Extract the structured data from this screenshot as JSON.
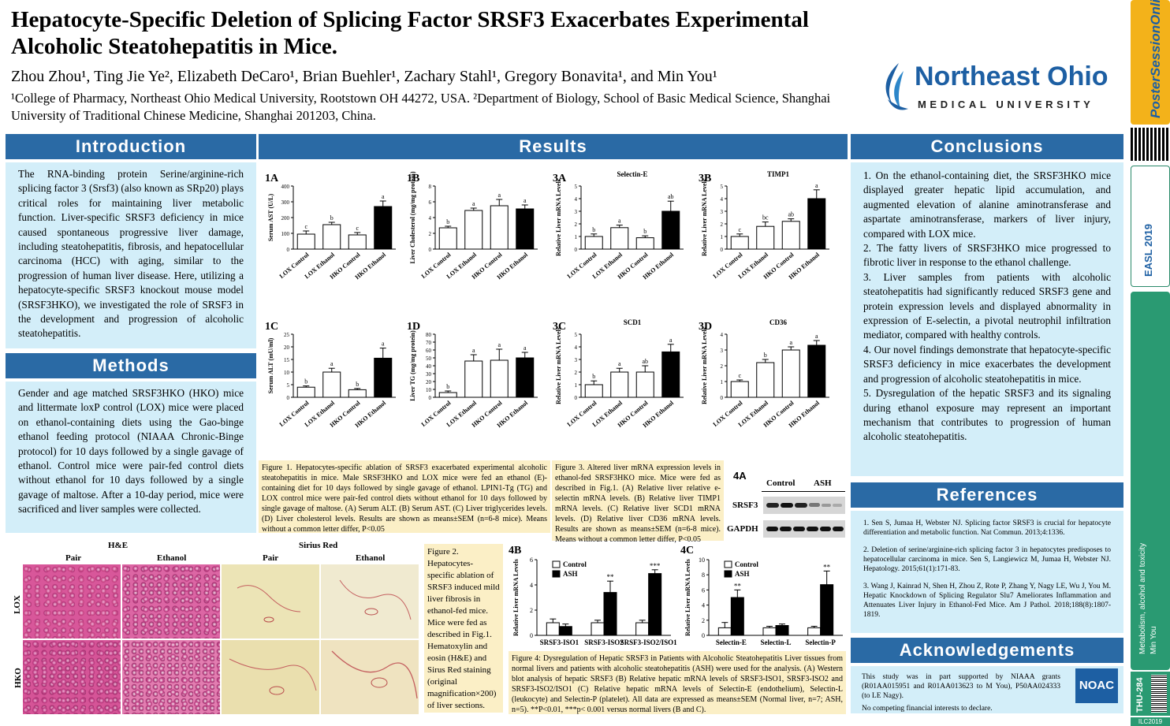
{
  "header": {
    "title": "Hepatocyte-Specific Deletion of Splicing Factor SRSF3 Exacerbates Experimental Alcoholic Steatohepatitis in Mice.",
    "authors": "Zhou Zhou¹, Ting Jie Ye², Elizabeth DeCaro¹, Brian Buehler¹, Zachary Stahl¹, Gregory Bonavita¹, and Min You¹",
    "affiliations": "¹College of Pharmacy, Northeast Ohio Medical University, Rootstown OH 44272, USA. ²Department of Biology, School of Basic Medical Science, Shanghai University of Traditional Chinese Medicine, Shanghai 201203, China.",
    "logo_name": "Northeast Ohio",
    "logo_sub": "MEDICAL UNIVERSITY"
  },
  "sections": {
    "introduction": "Introduction",
    "methods": "Methods",
    "results": "Results",
    "conclusions": "Conclusions",
    "references": "References",
    "acknowledgements": "Acknowledgements"
  },
  "introduction_text": "The RNA-binding protein Serine/arginine-rich splicing factor 3 (Srsf3) (also known as SRp20) plays critical roles for maintaining liver metabolic function. Liver-specific SRSF3 deficiency in mice caused spontaneous progressive liver damage, including steatohepatitis, fibrosis, and hepatocellular carcinoma (HCC) with aging, similar to the progression of human liver disease. Here, utilizing a hepatocyte-specific SRSF3 knockout mouse model (SRSF3HKO), we investigated the role of SRSF3 in the development and progression of alcoholic steatohepatitis.",
  "methods_text": "Gender and age matched SRSF3HKO (HKO) mice and littermate loxP control (LOX) mice were placed on ethanol-containing diets using the Gao-binge ethanol feeding protocol (NIAAA Chronic-Binge protocol) for 10 days followed by a single gavage of ethanol. Control mice were pair-fed control diets without ethanol for 10 days followed by a single gavage of maltose. After a 10-day period, mice were sacrificed and liver samples were collected.",
  "conclusions": [
    "1. On the ethanol-containing diet, the SRSF3HKO mice displayed greater hepatic lipid accumulation, and augmented elevation of alanine aminotransferase and aspartate aminotransferase, markers of liver injury, compared with LOX mice.",
    "2. The fatty livers of SRSF3HKO mice progressed to fibrotic liver in response to the ethanol challenge.",
    "3. Liver samples from patients with alcoholic steatohepatitis had significantly reduced SRSF3 gene and protein expression levels and displayed abnormality in expression of E-selectin, a pivotal neutrophil infiltration mediator, compared with healthy controls.",
    "4. Our novel findings demonstrate that hepatocyte-specific SRSF3 deficiency in mice exacerbates the development and progression of alcoholic steatohepatitis in mice.",
    "5. Dysregulation of the hepatic SRSF3 and its signaling during ethanol exposure may represent an important mechanism that contributes to progression of human alcoholic steatohepatitis."
  ],
  "references": [
    "1. Sen S, Jumaa H, Webster NJ. Splicing factor SRSF3 is crucial for hepatocyte differentiation and metabolic function. Nat Commun. 2013;4:1336.",
    "2. Deletion of serine/arginine-rich splicing factor 3 in hepatocytes predisposes to hepatocellular carcinoma in mice. Sen S, Langiewicz M, Jumaa H, Webster NJ. Hepatology. 2015;61(1):171-83.",
    "3. Wang J, Kainrad N, Shen H, Zhou Z, Rote P, Zhang Y, Nagy LE, Wu J, You M. Hepatic Knockdown of Splicing Regulator Slu7 Ameliorates Inflammation and Attenuates Liver Injury in Ethanol-Fed Mice. Am J Pathol. 2018;188(8):1807-1819."
  ],
  "acknowledgements": [
    "This study was in part supported by NIAAA grants (R01AA015951 and R01AA013623 to M You), P50AA024333 (to LE Nagy).",
    "No competing financial interests to declare."
  ],
  "noac": "NOAC",
  "captions": {
    "fig1": "Figure 1. Hepatocytes-specific ablation of SRSF3 exacerbated experimental alcoholic steatohepatitis in mice. Male SRSF3HKO and LOX mice were fed an ethanol (E)-containing diet for 10 days followed by single gavage of ethanol. LPIN1-Tg (TG) and LOX control mice were pair-fed control diets without ethanol for 10 days followed by single gavage of maltose. (A) Serum ALT. (B) Serum AST. (C) Liver triglycerides levels. (D) Liver cholesterol levels. Results are shown as means±SEM (n=6-8 mice). Means without a common letter differ, P<0.05",
    "fig3": "Figure 3. Altered liver mRNA expression levels in ethanol-fed SRSF3HKO mice. Mice were fed as described in Fig.1. (A) Relative liver relative e-selectin mRNA levels. (B) Relative liver TIMP1 mRNA levels. (C) Relative liver SCD1 mRNA levels. (D) Relative liver CD36 mRNA levels. Results are shown as means±SEM (n=6-8 mice). Means without a common letter differ, P<0.05",
    "fig2": "Figure 2. Hepatocytes-specific ablation of SRSF3 induced mild liver fibrosis in ethanol-fed mice. Mice were fed as described in Fig.1. Hematoxylin and eosin (H&E) and Sirus Red staining (original magnification×200) of liver sections.",
    "fig4": "Figure 4: Dysregulation of Hepatic SRSF3 in Patients with Alcoholic Steatohepatitis Liver tissues from normal livers and patients with alcoholic steatohepatitis (ASH) were used for the analysis. (A) Western blot analysis of hepatic SRSF3 (B) Relative hepatic mRNA levels of SRSF3-ISO1, SRSF3-ISO2 and SRSF3-ISO2/ISO1 (C) Relative hepatic mRNA levels of Selectin-E (endothelium), Selectin-L (leukocyte) and Selectin-P (platelet). All data are expressed as means±SEM (Normal liver, n=7; ASH, n=5). **P<0.01, ***p< 0.001 versus normal livers (B and C)."
  },
  "histology": {
    "he": "H&E",
    "sirius": "Sirius Red",
    "cols": [
      "Pair",
      "Ethanol",
      "Pair",
      "Ethanol"
    ],
    "rows": [
      "LOX",
      "HKO"
    ]
  },
  "western": {
    "label": "4A",
    "cols": [
      "Control",
      "ASH"
    ],
    "rows": [
      "SRSF3",
      "GAPDH"
    ]
  },
  "sidebar": {
    "brand": "PosterSessionOnline",
    "event": "EASL 2019",
    "topic": "Metabolism, alcohol and toxicity",
    "author": "Min You",
    "code": "THU-284",
    "footer": "ILC2019"
  },
  "chart_data": [
    {
      "id": "1A",
      "type": "bar",
      "ylabel": "Serum AST (U/L)",
      "categories": [
        "LOX Control",
        "LOX Ethanol",
        "HKO Control",
        "HKO Ethanol"
      ],
      "values": [
        95,
        155,
        90,
        270
      ],
      "errors": [
        20,
        15,
        15,
        35
      ],
      "letters": [
        "c",
        "b",
        "c",
        "a"
      ],
      "yticks": [
        0,
        100,
        200,
        300,
        400
      ],
      "ylim": [
        0,
        400
      ]
    },
    {
      "id": "1B",
      "type": "bar",
      "ylabel": "Liver Cholesterol (mg/mg protein)",
      "categories": [
        "LOX Control",
        "LOX Ethanol",
        "HKO Control",
        "HKO Ethanol"
      ],
      "values": [
        2.7,
        4.9,
        5.5,
        5.1
      ],
      "errors": [
        0.2,
        0.3,
        0.8,
        0.5
      ],
      "letters": [
        "b",
        "a",
        "a",
        "a"
      ],
      "yticks": [
        0,
        2,
        4,
        6,
        8
      ],
      "ylim": [
        0,
        8
      ]
    },
    {
      "id": "3A",
      "type": "bar",
      "title": "Selectin-E",
      "ylabel": "Relative Liver mRNA Levels",
      "categories": [
        "LOX Control",
        "LOX Ethanol",
        "HKO Control",
        "HKO Ethanol"
      ],
      "values": [
        1.0,
        1.7,
        0.9,
        3.0
      ],
      "errors": [
        0.2,
        0.2,
        0.15,
        0.8
      ],
      "letters": [
        "b",
        "a",
        "b",
        "ab"
      ],
      "yticks": [
        0,
        1,
        2,
        3,
        4,
        5
      ],
      "ylim": [
        0,
        5
      ]
    },
    {
      "id": "3B",
      "type": "bar",
      "title": "TIMP1",
      "ylabel": "Relative Liver mRNA Levels",
      "categories": [
        "LOX Control",
        "LOX Ethanol",
        "HKO Control",
        "HKO Ethanol"
      ],
      "values": [
        1.0,
        1.8,
        2.2,
        4.0
      ],
      "errors": [
        0.2,
        0.35,
        0.2,
        0.7
      ],
      "letters": [
        "c",
        "bc",
        "ab",
        "a"
      ],
      "yticks": [
        0,
        1,
        2,
        3,
        4,
        5
      ],
      "ylim": [
        0,
        5
      ]
    },
    {
      "id": "1C",
      "type": "bar",
      "ylabel": "Serum ALT (mU/ml)",
      "categories": [
        "LOX Control",
        "LOX Ethanol",
        "HKO Control",
        "HKO Ethanol"
      ],
      "values": [
        4,
        10,
        3,
        15.5
      ],
      "errors": [
        0.5,
        1.5,
        0.5,
        4
      ],
      "letters": [
        "b",
        "a",
        "b",
        "a"
      ],
      "yticks": [
        0,
        5,
        10,
        15,
        20,
        25
      ],
      "ylim": [
        0,
        25
      ]
    },
    {
      "id": "1D",
      "type": "bar",
      "ylabel": "Liver TG (mg/mg protein)",
      "categories": [
        "LOX Control",
        "LOX Ethanol",
        "HKO Control",
        "HKO Ethanol"
      ],
      "values": [
        6,
        46,
        47,
        50
      ],
      "errors": [
        2,
        8,
        14,
        7
      ],
      "letters": [
        "b",
        "a",
        "a",
        "a"
      ],
      "yticks": [
        0,
        10,
        20,
        30,
        40,
        50,
        60,
        70,
        80
      ],
      "ylim": [
        0,
        80
      ]
    },
    {
      "id": "3C",
      "type": "bar",
      "title": "SCD1",
      "ylabel": "Relative Liver mRNA Levels",
      "categories": [
        "LOX Control",
        "LOX Ethanol",
        "HKO Control",
        "HKO Ethanol"
      ],
      "values": [
        1.0,
        2.0,
        2.0,
        3.6
      ],
      "errors": [
        0.3,
        0.3,
        0.5,
        0.6
      ],
      "letters": [
        "b",
        "a",
        "ab",
        "a"
      ],
      "yticks": [
        0,
        1,
        2,
        3,
        4,
        5
      ],
      "ylim": [
        0,
        5
      ]
    },
    {
      "id": "3D",
      "type": "bar",
      "title": "CD36",
      "ylabel": "Relative Liver mRNA Levels",
      "categories": [
        "LOX Control",
        "LOX Ethanol",
        "HKO Control",
        "HKO Ethanol"
      ],
      "values": [
        1.0,
        2.2,
        3.0,
        3.3
      ],
      "errors": [
        0.1,
        0.2,
        0.2,
        0.3
      ],
      "letters": [
        "c",
        "b",
        "a",
        "a"
      ],
      "yticks": [
        0,
        1,
        2,
        3,
        4
      ],
      "ylim": [
        0,
        4
      ]
    },
    {
      "id": "4B",
      "type": "bar",
      "ylabel": "Relative Liver mRNA Levels",
      "categories": [
        "SRSF3-ISO1",
        "SRSF3-ISO2",
        "SRSF3-ISO2/ISO1"
      ],
      "series": [
        {
          "name": "Control",
          "values": [
            1.0,
            1.0,
            1.0
          ],
          "errors": [
            0.3,
            0.2,
            0.2
          ]
        },
        {
          "name": "ASH",
          "values": [
            0.7,
            3.4,
            4.9
          ],
          "errors": [
            0.2,
            0.9,
            0.3
          ]
        }
      ],
      "stars": [
        "",
        "**",
        "***"
      ],
      "yticks": [
        0,
        2,
        4,
        6
      ],
      "ylim": [
        0,
        6
      ]
    },
    {
      "id": "4C",
      "type": "bar",
      "ylabel": "Relative Liver mRNA Levels",
      "categories": [
        "Selectin-E",
        "Selectin-L",
        "Selectin-P"
      ],
      "series": [
        {
          "name": "Control",
          "values": [
            1.0,
            1.0,
            1.0
          ],
          "errors": [
            0.7,
            0.2,
            0.2
          ]
        },
        {
          "name": "ASH",
          "values": [
            5.0,
            1.3,
            6.7
          ],
          "errors": [
            1.0,
            0.2,
            1.8
          ]
        }
      ],
      "stars": [
        "**",
        "",
        "**"
      ],
      "yticks": [
        0,
        2,
        4,
        6,
        8,
        10
      ],
      "ylim": [
        0,
        10
      ]
    }
  ]
}
